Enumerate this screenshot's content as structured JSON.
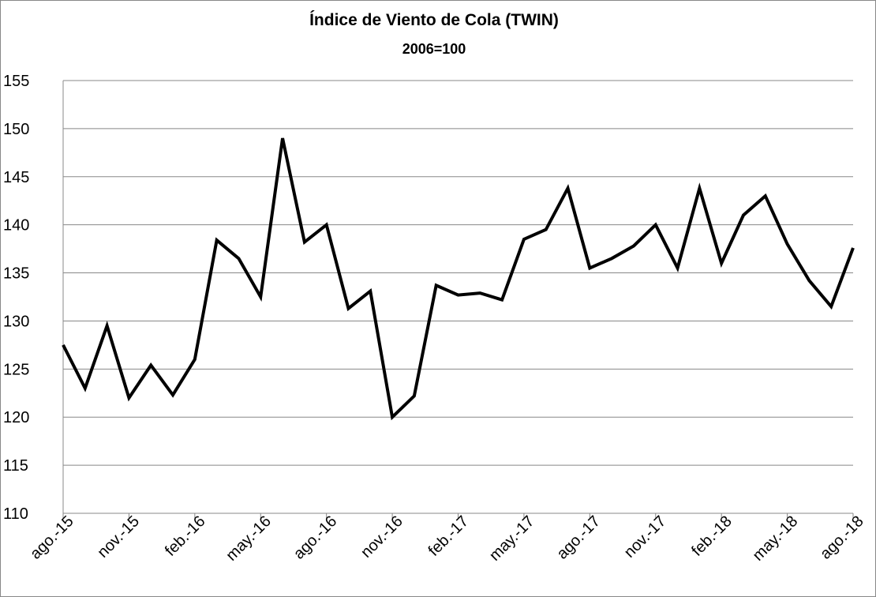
{
  "chart_data": {
    "type": "line",
    "title": "Índice de Viento de Cola (TWIN)",
    "subtitle": "2006=100",
    "categories": [
      "ago.-15",
      null,
      null,
      "nov.-15",
      null,
      null,
      "feb.-16",
      null,
      null,
      "may.-16",
      null,
      null,
      "ago.-16",
      null,
      null,
      "nov.-16",
      null,
      null,
      "feb.-17",
      null,
      null,
      "may.-17",
      null,
      null,
      "ago.-17",
      null,
      null,
      "nov.-17",
      null,
      null,
      "feb.-18",
      null,
      null,
      "may.-18",
      null,
      null,
      "ago.-18"
    ],
    "series": [
      {
        "name": "TWIN",
        "color": "#000000",
        "values": [
          127.5,
          123,
          129.5,
          122,
          125.4,
          122.3,
          126,
          138.4,
          136.5,
          132.5,
          149,
          138.2,
          140,
          131.3,
          133.1,
          120,
          122.2,
          133.7,
          132.7,
          132.9,
          132.2,
          138.5,
          139.5,
          143.8,
          135.5,
          136.5,
          137.8,
          140,
          135.5,
          143.8,
          136,
          141,
          143,
          138,
          134.2,
          131.5,
          137.6
        ]
      }
    ],
    "ylim": [
      110,
      155
    ],
    "yticks": [
      110,
      115,
      120,
      125,
      130,
      135,
      140,
      145,
      150,
      155
    ],
    "grid": true
  }
}
